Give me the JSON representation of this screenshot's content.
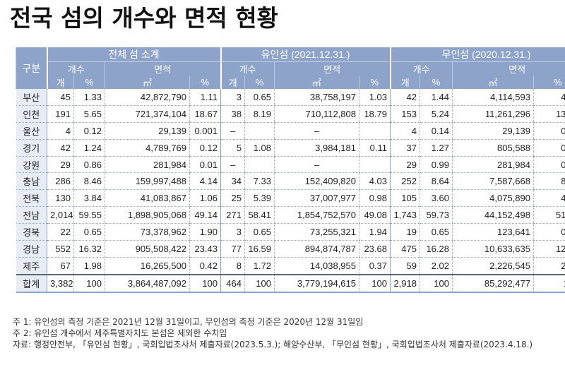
{
  "title": "전국 섬의 개수와 면적 현황",
  "header": {
    "region": "구분",
    "groups": [
      "전체 섬 소계",
      "유인섬 (2021.12.31.)",
      "무인섬 (2020.12.31.)"
    ],
    "count_label": "개수",
    "area_label": "면적",
    "unit_count": "개",
    "unit_pct": "%",
    "unit_area": "㎡"
  },
  "rows": [
    {
      "region": "부산",
      "values": [
        "45",
        "1.33",
        "42,872,790",
        "1.11",
        "3",
        "0.65",
        "38,758,197",
        "1.03",
        "42",
        "1.44",
        "4,114,593",
        "4.82"
      ]
    },
    {
      "region": "인천",
      "values": [
        "191",
        "5.65",
        "721,374,104",
        "18.67",
        "38",
        "8.19",
        "710,112,808",
        "18.79",
        "153",
        "5.24",
        "11,261,296",
        "13.20"
      ]
    },
    {
      "region": "울산",
      "values": [
        "4",
        "0.12",
        "29,139",
        "0.001",
        "–",
        "",
        "–",
        "",
        "4",
        "0.14",
        "29,139",
        "0.03"
      ]
    },
    {
      "region": "경기",
      "values": [
        "42",
        "1.24",
        "4,789,769",
        "0.12",
        "5",
        "1.08",
        "3,984,181",
        "0.11",
        "37",
        "1.27",
        "805,588",
        "0.94"
      ]
    },
    {
      "region": "강원",
      "values": [
        "29",
        "0.86",
        "281,984",
        "0.01",
        "–",
        "",
        "–",
        "",
        "29",
        "0.99",
        "281,984",
        "0.33"
      ]
    },
    {
      "region": "충남",
      "values": [
        "286",
        "8.46",
        "159,997,488",
        "4.14",
        "34",
        "7.33",
        "152,409,820",
        "4.03",
        "252",
        "8.64",
        "7,587,668",
        "8.90"
      ]
    },
    {
      "region": "전북",
      "values": [
        "130",
        "3.84",
        "41,083,867",
        "1.06",
        "25",
        "5.39",
        "37,007,977",
        "0.98",
        "105",
        "3.60",
        "4,075,890",
        "4.78"
      ]
    },
    {
      "region": "전남",
      "values": [
        "2,014",
        "59.55",
        "1,898,905,068",
        "49.14",
        "271",
        "58.41",
        "1,854,752,570",
        "49.08",
        "1,743",
        "59.73",
        "44,152,498",
        "51.77"
      ]
    },
    {
      "region": "경북",
      "values": [
        "22",
        "0.65",
        "73,378,962",
        "1.90",
        "3",
        "0.65",
        "73,255,321",
        "1.94",
        "19",
        "0.65",
        "123,641",
        "0.14"
      ]
    },
    {
      "region": "경남",
      "values": [
        "552",
        "16.32",
        "905,508,422",
        "23.43",
        "77",
        "16.59",
        "894,874,787",
        "23.68",
        "475",
        "16.28",
        "10,633,635",
        "12.47"
      ]
    },
    {
      "region": "제주",
      "values": [
        "67",
        "1.98",
        "16,265,500",
        "0.42",
        "8",
        "1.72",
        "14,038,955",
        "0.37",
        "59",
        "2.02",
        "2,226,545",
        "2.61"
      ]
    }
  ],
  "total": {
    "region": "합계",
    "values": [
      "3,382",
      "100",
      "3,864,487,092",
      "100",
      "464",
      "100",
      "3,779,194,615",
      "100",
      "2,918",
      "100",
      "85,292,477",
      "100"
    ]
  },
  "notes": [
    "주 1: 유인섬의 측정 기준은 2021년 12월 31일이고, 무인섬의 측정 기준은 2020년 12월 31일임",
    "주 2: 유인섬 개수에서 제주특별자치도 본섬은 제외한 수치임",
    "자료: 행정안전부, 「유인섬 현황」, 국회입법조사처 제출자료(2023.5.3.); 해양수산부, 「무인섬 현황」, 국회입법조사처 제출자료(2023.4.18.)"
  ],
  "colors": {
    "header_bg": "#8ea3c9",
    "region_bg": "#e8ecf4"
  }
}
